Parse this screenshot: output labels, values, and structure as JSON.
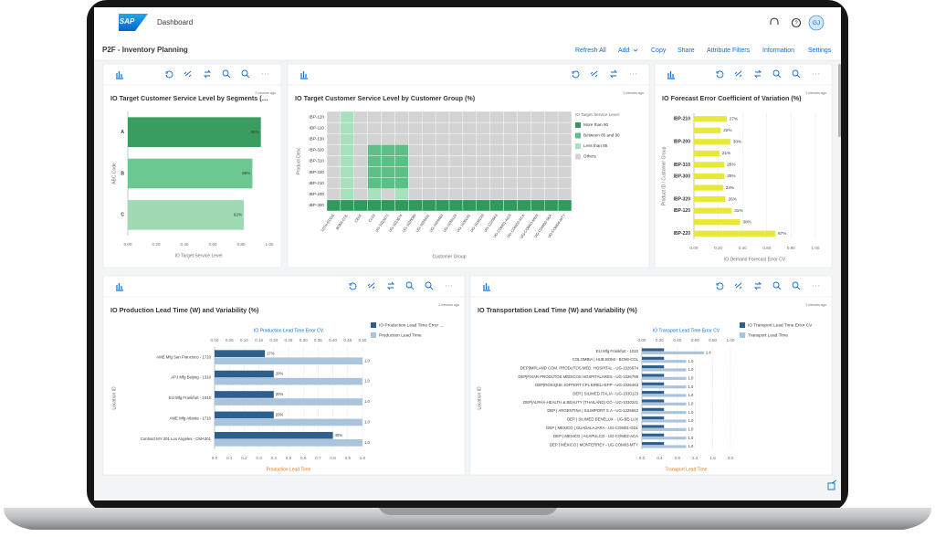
{
  "header": {
    "logo": "SAP",
    "app_title": "Dashboard",
    "user_initials": "GJ"
  },
  "page": {
    "title": "P2F - Inventory Planning",
    "actions": [
      "Refresh All",
      "Add",
      "Copy",
      "Share",
      "Attribute Filters",
      "Information",
      "Settings"
    ]
  },
  "chart_data": [
    {
      "type": "bar",
      "orientation": "horizontal",
      "title": "IO Target Customer Service Level by Segments (…",
      "timestamp": "2 minutes ago",
      "categories": [
        "A",
        "B",
        "C"
      ],
      "values": [
        0.94,
        0.88,
        0.82
      ],
      "value_labels": [
        "94%",
        "88%",
        "82%"
      ],
      "colors": [
        "#3a9d60",
        "#6cc891",
        "#9fdab5"
      ],
      "xlim": [
        0,
        1
      ],
      "xticks": [
        {
          "value": 0,
          "label": "0.00"
        },
        {
          "value": 0.2,
          "label": "0.20"
        },
        {
          "value": 0.4,
          "label": "0.40"
        },
        {
          "value": 0.6,
          "label": "0.60"
        },
        {
          "value": 0.8,
          "label": "0.80"
        },
        {
          "value": 1,
          "label": "1.00"
        }
      ],
      "x_label": "IO Target Service Level",
      "y_label": "ABC Code",
      "grid": false
    },
    {
      "type": "heatmap",
      "title": "IO Target Customer Service Level by Customer Group (%)",
      "timestamp": "2 minutes ago",
      "rows": [
        "IBP-120",
        "IBP-110",
        "IBP-130",
        "IBP-320",
        "IBP-310",
        "IBP-220",
        "IBP-210",
        "IBP-200",
        "IBP-300"
      ],
      "columns": [
        "10TH-EDGE",
        "BOMI-COL",
        "CE02",
        "CL02",
        "UG-1023371",
        "UG-1023674",
        "UG-1026089",
        "UG-1026431",
        "UG-1026463",
        "UG-1030123",
        "UG-1030241",
        "UG-1030239",
        "UG-1225563",
        "UG-COM01-AGS",
        "UG-COM02-ACA",
        "UG-COM03-MEN",
        "UG-COM03-SEA",
        "UG-COM04-MTY"
      ],
      "legend_title": "IO Target Service Level:",
      "levels": [
        {
          "name": "More than 90",
          "color": "#2e9a5c"
        },
        {
          "name": "Between 85 and 90",
          "color": "#5cbf85"
        },
        {
          "name": "Less than 85",
          "color": "#a8e0bd"
        },
        {
          "name": "Others",
          "color": "#d3d3d3"
        }
      ],
      "cells": [
        [
          3,
          2,
          3,
          3,
          3,
          3,
          3,
          3,
          3,
          3,
          3,
          3,
          3,
          3,
          3,
          3,
          3,
          3
        ],
        [
          3,
          2,
          3,
          3,
          3,
          3,
          3,
          3,
          3,
          3,
          3,
          3,
          3,
          3,
          3,
          3,
          3,
          3
        ],
        [
          3,
          2,
          3,
          3,
          3,
          3,
          3,
          3,
          3,
          3,
          3,
          3,
          3,
          3,
          3,
          3,
          3,
          3
        ],
        [
          3,
          2,
          3,
          1,
          1,
          1,
          3,
          3,
          3,
          3,
          3,
          3,
          3,
          3,
          3,
          3,
          3,
          3
        ],
        [
          3,
          2,
          3,
          1,
          1,
          1,
          3,
          3,
          3,
          3,
          3,
          3,
          3,
          3,
          3,
          3,
          3,
          3
        ],
        [
          3,
          2,
          3,
          1,
          1,
          1,
          3,
          3,
          3,
          3,
          3,
          3,
          3,
          3,
          3,
          3,
          3,
          3
        ],
        [
          3,
          2,
          3,
          1,
          1,
          1,
          3,
          3,
          3,
          3,
          3,
          3,
          3,
          3,
          3,
          3,
          3,
          3
        ],
        [
          3,
          2,
          3,
          2,
          3,
          2,
          3,
          3,
          3,
          3,
          3,
          3,
          3,
          3,
          3,
          3,
          3,
          3
        ],
        [
          0,
          0,
          0,
          0,
          0,
          0,
          0,
          0,
          0,
          0,
          0,
          0,
          0,
          0,
          0,
          0,
          0,
          0
        ]
      ],
      "x_label": "Customer Group",
      "y_label": "Product Desc"
    },
    {
      "type": "bar",
      "orientation": "horizontal",
      "title": "IO Forecast Error Coefficient of Variation (%)",
      "timestamp": "2 minutes ago",
      "categories": [
        "IBP-210",
        null,
        "IBP-200",
        null,
        "IBP-310",
        "IBP-300",
        null,
        "IBP-320",
        "IBP-120",
        null,
        "IBP-220"
      ],
      "values": [
        0.27,
        0.22,
        0.3,
        0.21,
        0.25,
        0.25,
        0.24,
        0.26,
        0.31,
        0.38,
        0.67
      ],
      "value_labels": [
        "27%",
        "22%",
        "30%",
        "21%",
        "25%",
        "25%",
        "24%",
        "26%",
        "31%",
        "38%",
        "67%"
      ],
      "color": "#e8e838",
      "xlim": [
        0,
        1
      ],
      "xticks": [
        {
          "value": 0,
          "label": "0.00"
        },
        {
          "value": 0.2,
          "label": "0.20"
        },
        {
          "value": 0.4,
          "label": "0.40"
        },
        {
          "value": 0.6,
          "label": "0.60"
        },
        {
          "value": 0.8,
          "label": "0.80"
        },
        {
          "value": 1,
          "label": "1.00"
        }
      ],
      "x_label": "IO Demand Forecast Error CV",
      "y_label": "Product ID / Customer Group",
      "grid": true
    },
    {
      "type": "bar",
      "orientation": "horizontal",
      "title": "IO Production Lead Time (W) and Variability (%)",
      "timestamp": "2 minutes ago",
      "categories": [
        "AME Mfg San Francisco - 1720",
        "APJ Mfg Beijing - 1310",
        "EU Mfg Frankfurt - 1010",
        "AME Mfg Atlanta - 1710",
        "Contract MY 301 Los Angeles - CMA301"
      ],
      "series": [
        {
          "name": "IO Production Lead Time Error ...",
          "color": "#2d5f8f",
          "axis": "x2",
          "values": [
            0.17,
            0.2,
            0.2,
            0.2,
            0.4
          ],
          "value_labels": [
            "17%",
            "20%",
            "20%",
            "20%",
            "40%"
          ]
        },
        {
          "name": "Production Lead Time",
          "color": "#a9c4dc",
          "values": [
            1,
            1,
            1,
            1,
            1
          ],
          "value_labels": [
            "1.0",
            "1.0",
            "1.0",
            "1.0",
            "1.0"
          ]
        }
      ],
      "xlim": [
        0,
        1
      ],
      "xticks": [
        {
          "value": 0,
          "label": "0.0"
        },
        0.1,
        0.2,
        0.3,
        0.4,
        0.5,
        0.6,
        0.7,
        0.8,
        0.9,
        {
          "value": 1,
          "label": "1.0"
        }
      ],
      "x2lim": [
        0,
        0.5
      ],
      "x2ticks": [
        {
          "value": 0,
          "label": "0.00"
        },
        {
          "value": 0.05,
          "label": "0.05"
        },
        {
          "value": 0.1,
          "label": "0.10"
        },
        {
          "value": 0.15,
          "label": "0.15"
        },
        {
          "value": 0.2,
          "label": "0.20"
        },
        {
          "value": 0.25,
          "label": "0.25"
        },
        {
          "value": 0.3,
          "label": "0.30"
        },
        {
          "value": 0.35,
          "label": "0.35"
        },
        {
          "value": 0.4,
          "label": "0.40"
        },
        {
          "value": 0.45,
          "label": "0.45"
        },
        {
          "value": 0.5,
          "label": "0.50"
        }
      ],
      "x_label": "Production Lead Time",
      "x_label_color": "#e9730c",
      "x2_label": "IO Production Lead Time Error CV",
      "x2_label_color": "#0a6ed1",
      "y_label": "Location ID",
      "grid": true
    },
    {
      "type": "bar",
      "orientation": "horizontal",
      "title": "IO Transportation Lead Time (W) and Variability (%)",
      "timestamp": "2 minutes ago",
      "categories": [
        "EU Mfg Frankfurt - 1010",
        "COLOMBIA | HUB BOMI - BOMI-COL",
        "DEP|IMPLAND COM. PRODUTOS MED. HOSPITAL - UG-1026674",
        "DEP|FIXAR PRODUTOS MEDICOS HOSPITALARES - UG-1026789",
        "DEP|ROSIQUE JOFFERT CPL EIRELI-EPP - UG-1026463",
        "DEP | SILIMED ITALIA - UG-1030123",
        "DEP|ALPHA-HEALTH & BEAUTY (THAILAND) CO - UG-1030241",
        "DEP | ARGENTINA | SILIMPORT S.A - UG-1225563",
        "DEP | SILIMED BENELUX - UG-BE-LUX",
        "DEP | MEXICO | GUADALAJARA - UG-COM01-GDL",
        "DEP | MEXICO | ACAPULCO - UG-COM02-ACA",
        "DEP | MÉXICO | MONTERREY - UG-COM03-MTY"
      ],
      "series": [
        {
          "name": "IO Transport Lead Time Error CV",
          "color": "#2d5f8f",
          "axis": "x2",
          "values": [
            0.25,
            0.25,
            0.25,
            0.25,
            0.25,
            0.25,
            0.25,
            0.25,
            0.25,
            0.25,
            0.25,
            0.25
          ]
        },
        {
          "name": "Transport Lead Time",
          "color": "#a9c4dc",
          "values": [
            1.4,
            1,
            1,
            1,
            1,
            1,
            1,
            1,
            1,
            1,
            1,
            1
          ],
          "value_labels": [
            "1.4",
            "1.0",
            "1.0",
            "1.0",
            "1.0",
            "1.0",
            "1.0",
            "1.0",
            "1.0",
            "1.0",
            "1.0",
            "1.0"
          ]
        }
      ],
      "xlim": [
        0,
        2
      ],
      "xticks": [
        {
          "value": 0,
          "label": "0.0"
        },
        0.4,
        0.8,
        1.2,
        1.6,
        {
          "value": 2,
          "label": "2.0"
        }
      ],
      "x2lim": [
        0,
        1
      ],
      "x2ticks": [
        {
          "value": 0,
          "label": "0.00"
        },
        {
          "value": 0.2,
          "label": "0.20"
        },
        {
          "value": 0.4,
          "label": "0.40"
        },
        {
          "value": 0.6,
          "label": "0.60"
        },
        {
          "value": 0.8,
          "label": "0.80"
        },
        {
          "value": 1,
          "label": "1.00"
        }
      ],
      "x_label": "Transport Lead Time",
      "x_label_color": "#e9730c",
      "x2_label": "IO Transport Lead Time Error CV",
      "x2_label_color": "#0a6ed1",
      "y_label": "Location ID",
      "grid": true
    }
  ]
}
